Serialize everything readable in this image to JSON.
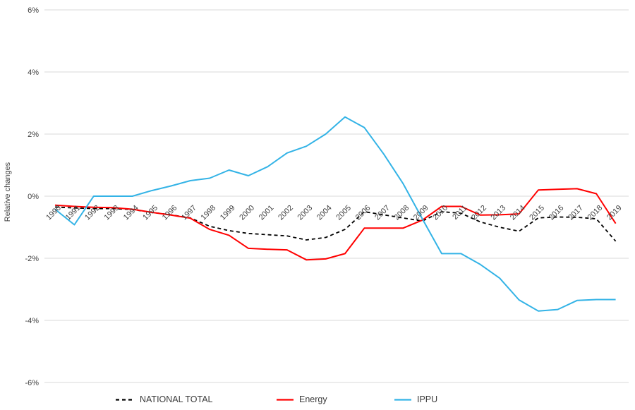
{
  "chart_data": {
    "type": "line",
    "title": "",
    "ylabel": "Relative changes",
    "x": [
      1990,
      1991,
      1992,
      1993,
      1994,
      1995,
      1996,
      1997,
      1998,
      1999,
      2000,
      2001,
      2002,
      2003,
      2004,
      2005,
      2006,
      2007,
      2008,
      2009,
      2010,
      2011,
      2012,
      2013,
      2014,
      2015,
      2016,
      2017,
      2018,
      2019
    ],
    "ylim": [
      -6,
      6
    ],
    "yticks": [
      6,
      4,
      2,
      0,
      -2,
      -4,
      -6
    ],
    "ytick_suffix": "%",
    "grid": true,
    "legend_position": "bottom",
    "series": [
      {
        "name": "NATIONAL TOTAL",
        "color": "#000000",
        "line_style": "dashed",
        "values": [
          -0.35,
          -0.38,
          -0.4,
          -0.4,
          -0.43,
          -0.52,
          -0.6,
          -0.7,
          -0.97,
          -1.11,
          -1.2,
          -1.24,
          -1.28,
          -1.41,
          -1.33,
          -1.07,
          -0.5,
          -0.6,
          -0.7,
          -0.8,
          -0.5,
          -0.55,
          -0.83,
          -1.0,
          -1.13,
          -0.7,
          -0.67,
          -0.68,
          -0.73,
          -1.45
        ]
      },
      {
        "name": "Energy",
        "color": "#FF0000",
        "line_style": "solid",
        "values": [
          -0.29,
          -0.33,
          -0.36,
          -0.37,
          -0.42,
          -0.52,
          -0.61,
          -0.71,
          -1.07,
          -1.26,
          -1.68,
          -1.71,
          -1.73,
          -2.05,
          -2.02,
          -1.85,
          -1.03,
          -1.03,
          -1.03,
          -0.77,
          -0.33,
          -0.33,
          -0.61,
          -0.6,
          -0.57,
          0.2,
          0.22,
          0.24,
          0.08,
          -0.88
        ]
      },
      {
        "name": "IPPU",
        "color": "#33B3E6",
        "line_style": "solid",
        "values": [
          -0.42,
          -0.92,
          0.0,
          0.0,
          0.0,
          0.18,
          0.33,
          0.5,
          0.58,
          0.84,
          0.66,
          0.95,
          1.39,
          1.61,
          2.0,
          2.55,
          2.21,
          1.36,
          0.41,
          -0.73,
          -1.85,
          -1.85,
          -2.2,
          -2.64,
          -3.34,
          -3.7,
          -3.65,
          -3.36,
          -3.33,
          -3.33
        ]
      }
    ],
    "style": {
      "grid_color": "#D9D9D9",
      "axis_text_color": "#404040",
      "x_label_color": "#3f3f3f"
    }
  }
}
